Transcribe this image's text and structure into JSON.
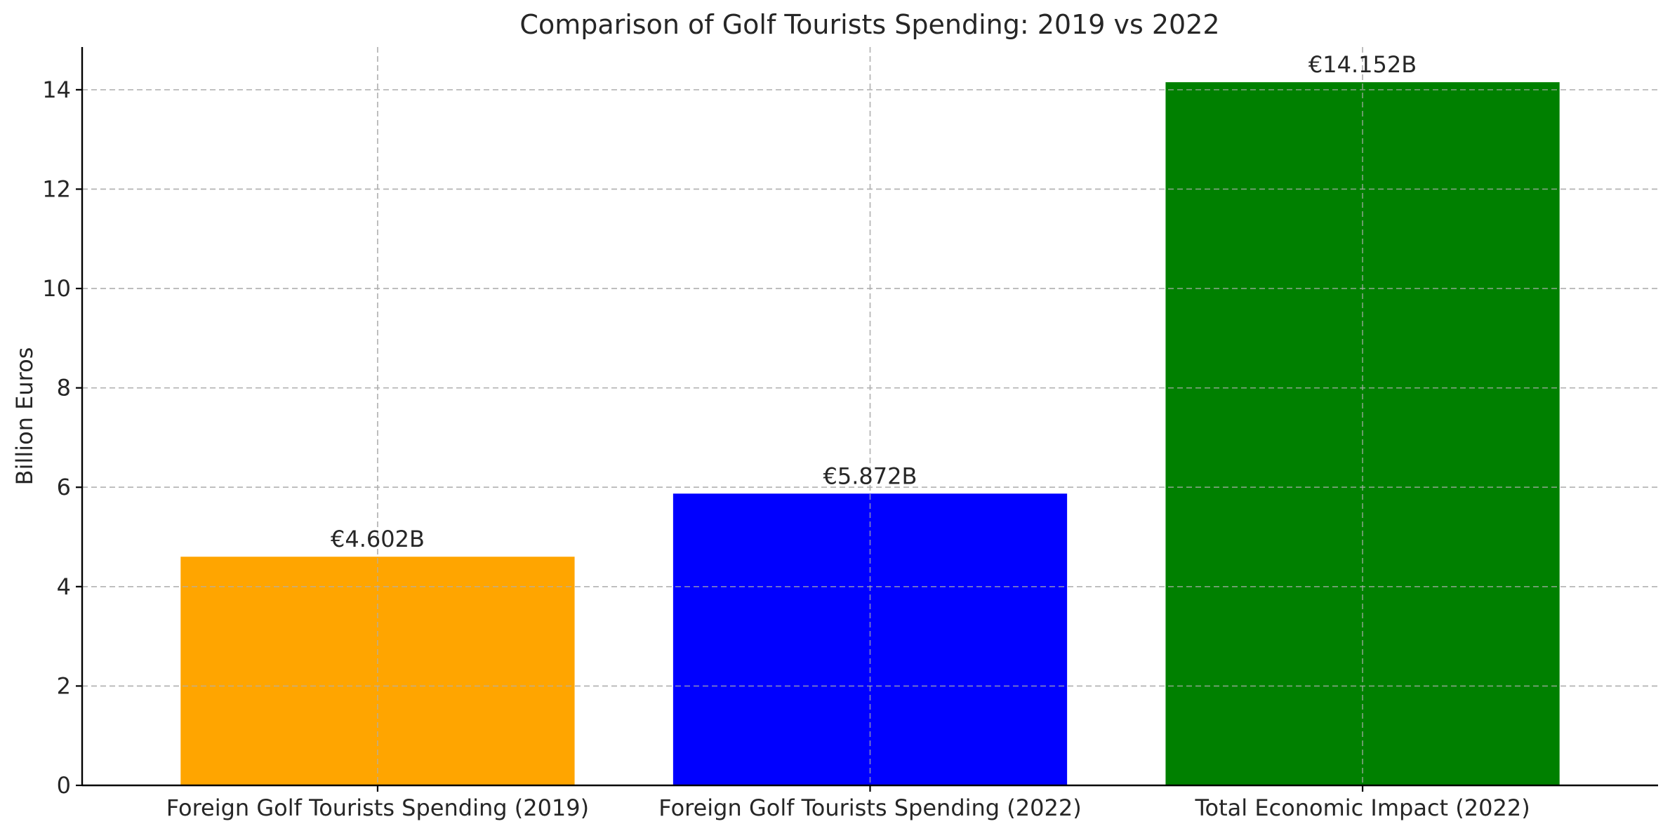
{
  "chart_data": {
    "type": "bar",
    "title": "Comparison of Golf Tourists Spending: 2019 vs 2022",
    "xlabel": "",
    "ylabel": "Billion Euros",
    "categories": [
      "Foreign Golf Tourists Spending (2019)",
      "Foreign Golf Tourists Spending (2022)",
      "Total Economic Impact (2022)"
    ],
    "values": [
      4.602,
      5.872,
      14.152
    ],
    "bar_labels": [
      "€4.602B",
      "€5.872B",
      "€14.152B"
    ],
    "colors": [
      "#FFA500",
      "#0000FF",
      "#008000"
    ],
    "ylim": [
      0,
      14.86
    ],
    "yticks": [
      0,
      2,
      4,
      6,
      8,
      10,
      12,
      14
    ],
    "grid": true
  }
}
